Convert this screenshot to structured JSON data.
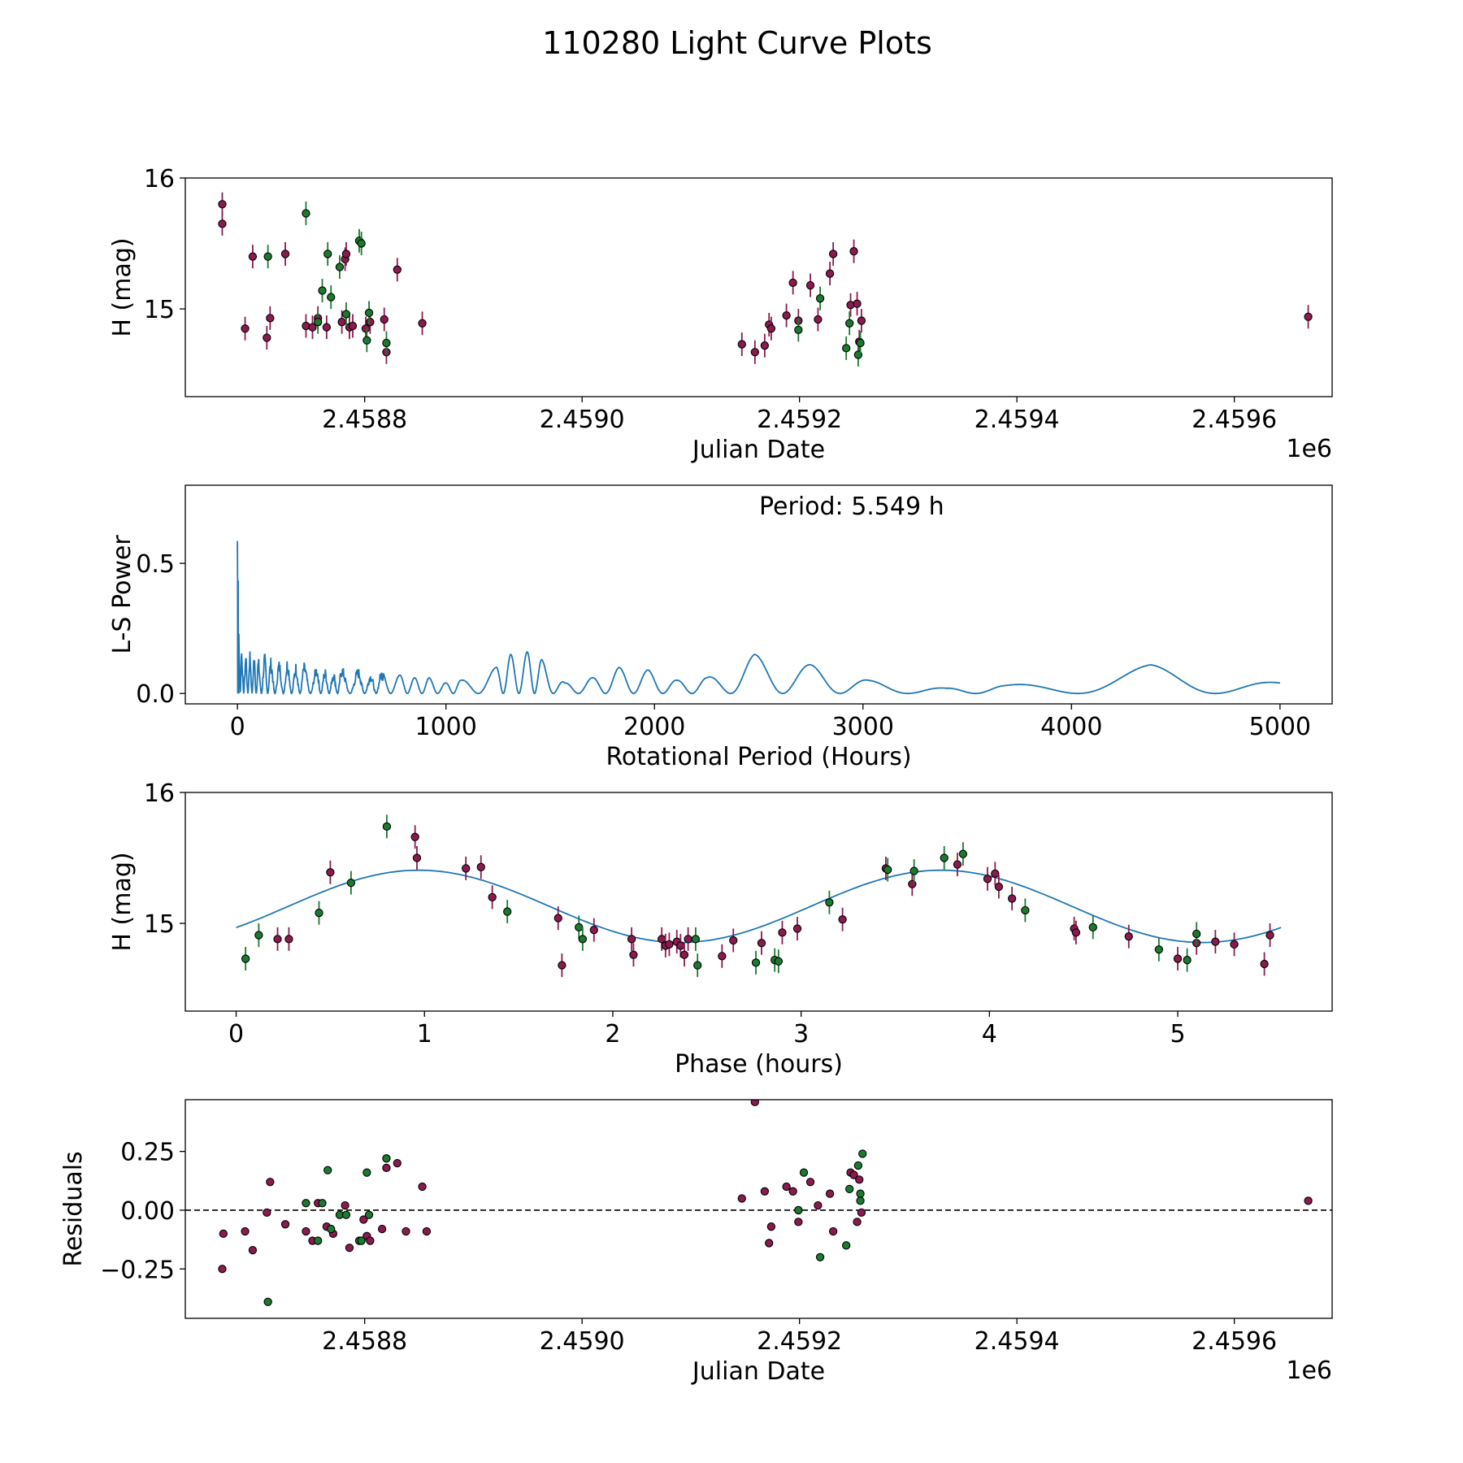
{
  "figure": {
    "title": "110280 Light Curve Plots"
  },
  "colors": {
    "series_a": "#8B1A4F",
    "series_b": "#1A7A2E",
    "model": "#1f77b4",
    "axis": "#000000"
  },
  "chart_data": [
    {
      "type": "scatter",
      "xlabel": "Julian Date",
      "ylabel": "H (mag)",
      "xlim": [
        2458635,
        2459690
      ],
      "ylim": [
        14.33,
        16.0
      ],
      "xticks": [
        2458800,
        2459000,
        2459200,
        2459400,
        2459600
      ],
      "xtick_labels": [
        "2.4588",
        "2.4590",
        "2.4592",
        "2.4594",
        "2.4596"
      ],
      "yticks": [
        15,
        16
      ],
      "ytick_labels": [
        "15",
        "16"
      ],
      "offset_text": "1e6",
      "series": [
        {
          "name": "A",
          "color_key": "series_a",
          "error": 0.09,
          "points": [
            [
              2458669,
              15.65
            ],
            [
              2458669,
              15.8
            ],
            [
              2458690,
              14.85
            ],
            [
              2458697,
              15.4
            ],
            [
              2458710,
              14.78
            ],
            [
              2458713,
              14.93
            ],
            [
              2458727,
              15.42
            ],
            [
              2458746,
              14.87
            ],
            [
              2458752,
              14.86
            ],
            [
              2458757,
              14.93
            ],
            [
              2458765,
              14.86
            ],
            [
              2458779,
              14.9
            ],
            [
              2458782,
              15.38
            ],
            [
              2458783,
              15.42
            ],
            [
              2458786,
              14.86
            ],
            [
              2458789,
              14.87
            ],
            [
              2458801,
              14.85
            ],
            [
              2458805,
              14.9
            ],
            [
              2458818,
              14.92
            ],
            [
              2458820,
              14.67
            ],
            [
              2458830,
              15.3
            ],
            [
              2458853,
              14.89
            ],
            [
              2459147,
              14.73
            ],
            [
              2459159,
              14.67
            ],
            [
              2459168,
              14.72
            ],
            [
              2459172,
              14.88
            ],
            [
              2459174,
              14.85
            ],
            [
              2459188,
              14.95
            ],
            [
              2459194,
              15.2
            ],
            [
              2459199,
              14.91
            ],
            [
              2459210,
              15.18
            ],
            [
              2459217,
              14.92
            ],
            [
              2459228,
              15.27
            ],
            [
              2459231,
              15.42
            ],
            [
              2459247,
              15.03
            ],
            [
              2459250,
              15.44
            ],
            [
              2459253,
              15.04
            ],
            [
              2459255,
              14.75
            ],
            [
              2459257,
              14.91
            ],
            [
              2459668,
              14.94
            ]
          ]
        },
        {
          "name": "B",
          "color_key": "series_b",
          "error": 0.09,
          "points": [
            [
              2458711,
              15.4
            ],
            [
              2458746,
              15.73
            ],
            [
              2458757,
              14.9
            ],
            [
              2458761,
              15.14
            ],
            [
              2458766,
              15.42
            ],
            [
              2458769,
              15.09
            ],
            [
              2458777,
              15.32
            ],
            [
              2458783,
              14.96
            ],
            [
              2458795,
              15.52
            ],
            [
              2458797,
              15.5
            ],
            [
              2458802,
              14.76
            ],
            [
              2458804,
              14.97
            ],
            [
              2458820,
              14.74
            ],
            [
              2459199,
              14.84
            ],
            [
              2459219,
              15.08
            ],
            [
              2459243,
              14.7
            ],
            [
              2459246,
              14.89
            ],
            [
              2459254,
              14.65
            ],
            [
              2459256,
              14.74
            ]
          ]
        }
      ]
    },
    {
      "type": "line",
      "xlabel": "Rotational Period (Hours)",
      "ylabel": "L-S Power",
      "xlim": [
        -250,
        5250
      ],
      "ylim": [
        -0.04,
        0.8
      ],
      "xticks": [
        0,
        1000,
        2000,
        3000,
        4000,
        5000
      ],
      "xtick_labels": [
        "0",
        "1000",
        "2000",
        "3000",
        "4000",
        "5000"
      ],
      "yticks": [
        0.0,
        0.5
      ],
      "ytick_labels": [
        "0.0",
        "0.5"
      ],
      "annotation": "Period: 5.549 h",
      "peaks": [
        [
          0,
          0.76
        ],
        [
          3,
          0.68
        ],
        [
          7,
          0.27
        ],
        [
          20,
          0.2
        ],
        [
          40,
          0.17
        ],
        [
          60,
          0.18
        ],
        [
          80,
          0.16
        ],
        [
          100,
          0.14
        ],
        [
          130,
          0.16
        ],
        [
          160,
          0.14
        ],
        [
          200,
          0.13
        ],
        [
          240,
          0.14
        ],
        [
          280,
          0.12
        ],
        [
          320,
          0.12
        ],
        [
          380,
          0.11
        ],
        [
          420,
          0.1
        ],
        [
          460,
          0.09
        ],
        [
          500,
          0.11
        ],
        [
          580,
          0.1
        ],
        [
          640,
          0.08
        ],
        [
          690,
          0.09
        ],
        [
          780,
          0.07
        ],
        [
          850,
          0.06
        ],
        [
          920,
          0.06
        ],
        [
          1000,
          0.04
        ],
        [
          1070,
          0.05
        ],
        [
          1240,
          0.1
        ],
        [
          1310,
          0.15
        ],
        [
          1390,
          0.16
        ],
        [
          1460,
          0.13
        ],
        [
          1570,
          0.04
        ],
        [
          1700,
          0.06
        ],
        [
          1830,
          0.1
        ],
        [
          1970,
          0.09
        ],
        [
          2110,
          0.05
        ],
        [
          2250,
          0.06
        ],
        [
          2480,
          0.15
        ],
        [
          2750,
          0.11
        ],
        [
          3030,
          0.05
        ],
        [
          3400,
          0.02
        ],
        [
          3680,
          0.03
        ],
        [
          4380,
          0.11
        ],
        [
          5000,
          0.04
        ]
      ]
    },
    {
      "type": "scatter",
      "xlabel": "Phase (hours)",
      "ylabel": "H (mag)",
      "xlim": [
        -0.27,
        5.82
      ],
      "ylim": [
        14.33,
        16.0
      ],
      "xticks": [
        0,
        1,
        2,
        3,
        4,
        5
      ],
      "xtick_labels": [
        "0",
        "1",
        "2",
        "3",
        "4",
        "5"
      ],
      "yticks": [
        15,
        16
      ],
      "ytick_labels": [
        "15",
        "16"
      ],
      "model": {
        "mean": 15.13,
        "amplitude": 0.276,
        "period_hours": 2.7745,
        "peak_phase": 0.97,
        "x_range": [
          0,
          5.549
        ]
      },
      "series": [
        {
          "name": "A",
          "color_key": "series_a",
          "error": 0.09,
          "points": [
            [
              0.22,
              14.88
            ],
            [
              0.28,
              14.88
            ],
            [
              0.5,
              15.39
            ],
            [
              0.95,
              15.66
            ],
            [
              0.96,
              15.5
            ],
            [
              1.22,
              15.42
            ],
            [
              1.3,
              15.43
            ],
            [
              1.36,
              15.2
            ],
            [
              1.71,
              15.04
            ],
            [
              1.73,
              14.68
            ],
            [
              1.9,
              14.95
            ],
            [
              2.1,
              14.88
            ],
            [
              2.11,
              14.76
            ],
            [
              2.26,
              14.88
            ],
            [
              2.28,
              14.83
            ],
            [
              2.3,
              14.84
            ],
            [
              2.34,
              14.86
            ],
            [
              2.36,
              14.83
            ],
            [
              2.38,
              14.76
            ],
            [
              2.4,
              14.88
            ],
            [
              2.58,
              14.75
            ],
            [
              2.64,
              14.87
            ],
            [
              2.79,
              14.85
            ],
            [
              2.9,
              14.93
            ],
            [
              2.98,
              14.96
            ],
            [
              3.22,
              15.03
            ],
            [
              3.45,
              15.42
            ],
            [
              3.59,
              15.3
            ],
            [
              3.83,
              15.45
            ],
            [
              3.99,
              15.34
            ],
            [
              4.03,
              15.38
            ],
            [
              4.05,
              15.28
            ],
            [
              4.12,
              15.19
            ],
            [
              4.45,
              14.96
            ],
            [
              4.46,
              14.93
            ],
            [
              4.74,
              14.9
            ],
            [
              5.0,
              14.73
            ],
            [
              5.1,
              14.85
            ],
            [
              5.2,
              14.86
            ],
            [
              5.3,
              14.84
            ],
            [
              5.46,
              14.69
            ],
            [
              5.49,
              14.91
            ]
          ]
        },
        {
          "name": "B",
          "color_key": "series_b",
          "error": 0.09,
          "points": [
            [
              0.05,
              14.73
            ],
            [
              0.12,
              14.91
            ],
            [
              0.44,
              15.08
            ],
            [
              0.61,
              15.31
            ],
            [
              0.8,
              15.74
            ],
            [
              1.44,
              15.09
            ],
            [
              1.82,
              14.97
            ],
            [
              1.84,
              14.88
            ],
            [
              2.44,
              14.88
            ],
            [
              2.45,
              14.68
            ],
            [
              2.76,
              14.7
            ],
            [
              2.86,
              14.72
            ],
            [
              2.88,
              14.71
            ],
            [
              3.15,
              15.16
            ],
            [
              3.46,
              15.41
            ],
            [
              3.6,
              15.4
            ],
            [
              3.76,
              15.5
            ],
            [
              3.86,
              15.53
            ],
            [
              4.19,
              15.1
            ],
            [
              4.55,
              14.97
            ],
            [
              4.9,
              14.8
            ],
            [
              5.05,
              14.72
            ],
            [
              5.1,
              14.92
            ]
          ]
        }
      ]
    },
    {
      "type": "scatter",
      "xlabel": "Julian Date",
      "ylabel": "Residuals",
      "xlim": [
        2458635,
        2459690
      ],
      "ylim": [
        -0.46,
        0.47
      ],
      "xticks": [
        2458800,
        2459000,
        2459200,
        2459400,
        2459600
      ],
      "xtick_labels": [
        "2.4588",
        "2.4590",
        "2.4592",
        "2.4594",
        "2.4596"
      ],
      "yticks": [
        0.25,
        0.0,
        -0.25
      ],
      "ytick_labels": [
        "0.25",
        "0.00",
        "−0.25"
      ],
      "offset_text": "1e6",
      "reference_line": 0.0,
      "series": [
        {
          "name": "A",
          "color_key": "series_a",
          "points": [
            [
              2458669,
              -0.25
            ],
            [
              2458670,
              -0.1
            ],
            [
              2458690,
              -0.09
            ],
            [
              2458697,
              -0.17
            ],
            [
              2458710,
              -0.01
            ],
            [
              2458713,
              0.12
            ],
            [
              2458727,
              -0.06
            ],
            [
              2458746,
              -0.09
            ],
            [
              2458752,
              -0.13
            ],
            [
              2458757,
              0.03
            ],
            [
              2458765,
              -0.07
            ],
            [
              2458771,
              -0.1
            ],
            [
              2458782,
              0.02
            ],
            [
              2458786,
              -0.16
            ],
            [
              2458799,
              -0.04
            ],
            [
              2458802,
              -0.11
            ],
            [
              2458805,
              -0.13
            ],
            [
              2458816,
              -0.08
            ],
            [
              2458820,
              0.18
            ],
            [
              2458830,
              0.2
            ],
            [
              2458838,
              -0.09
            ],
            [
              2458853,
              0.1
            ],
            [
              2458857,
              -0.09
            ],
            [
              2459147,
              0.05
            ],
            [
              2459159,
              0.46
            ],
            [
              2459168,
              0.08
            ],
            [
              2459172,
              -0.14
            ],
            [
              2459174,
              -0.07
            ],
            [
              2459188,
              0.1
            ],
            [
              2459194,
              0.08
            ],
            [
              2459199,
              -0.05
            ],
            [
              2459210,
              0.12
            ],
            [
              2459217,
              0.02
            ],
            [
              2459228,
              0.07
            ],
            [
              2459231,
              -0.09
            ],
            [
              2459247,
              0.16
            ],
            [
              2459250,
              0.15
            ],
            [
              2459253,
              -0.05
            ],
            [
              2459255,
              0.13
            ],
            [
              2459257,
              -0.01
            ],
            [
              2459668,
              0.04
            ]
          ]
        },
        {
          "name": "B",
          "color_key": "series_b",
          "points": [
            [
              2458711,
              -0.39
            ],
            [
              2458746,
              0.03
            ],
            [
              2458757,
              -0.13
            ],
            [
              2458761,
              0.03
            ],
            [
              2458766,
              0.17
            ],
            [
              2458769,
              -0.08
            ],
            [
              2458777,
              -0.02
            ],
            [
              2458783,
              -0.02
            ],
            [
              2458795,
              -0.13
            ],
            [
              2458797,
              -0.13
            ],
            [
              2458802,
              0.16
            ],
            [
              2458804,
              -0.02
            ],
            [
              2458820,
              0.22
            ],
            [
              2459199,
              0.0
            ],
            [
              2459204,
              0.16
            ],
            [
              2459219,
              -0.2
            ],
            [
              2459243,
              -0.15
            ],
            [
              2459246,
              0.09
            ],
            [
              2459254,
              0.19
            ],
            [
              2459256,
              0.07
            ],
            [
              2459256,
              0.04
            ],
            [
              2459258,
              0.24
            ]
          ]
        }
      ]
    }
  ]
}
